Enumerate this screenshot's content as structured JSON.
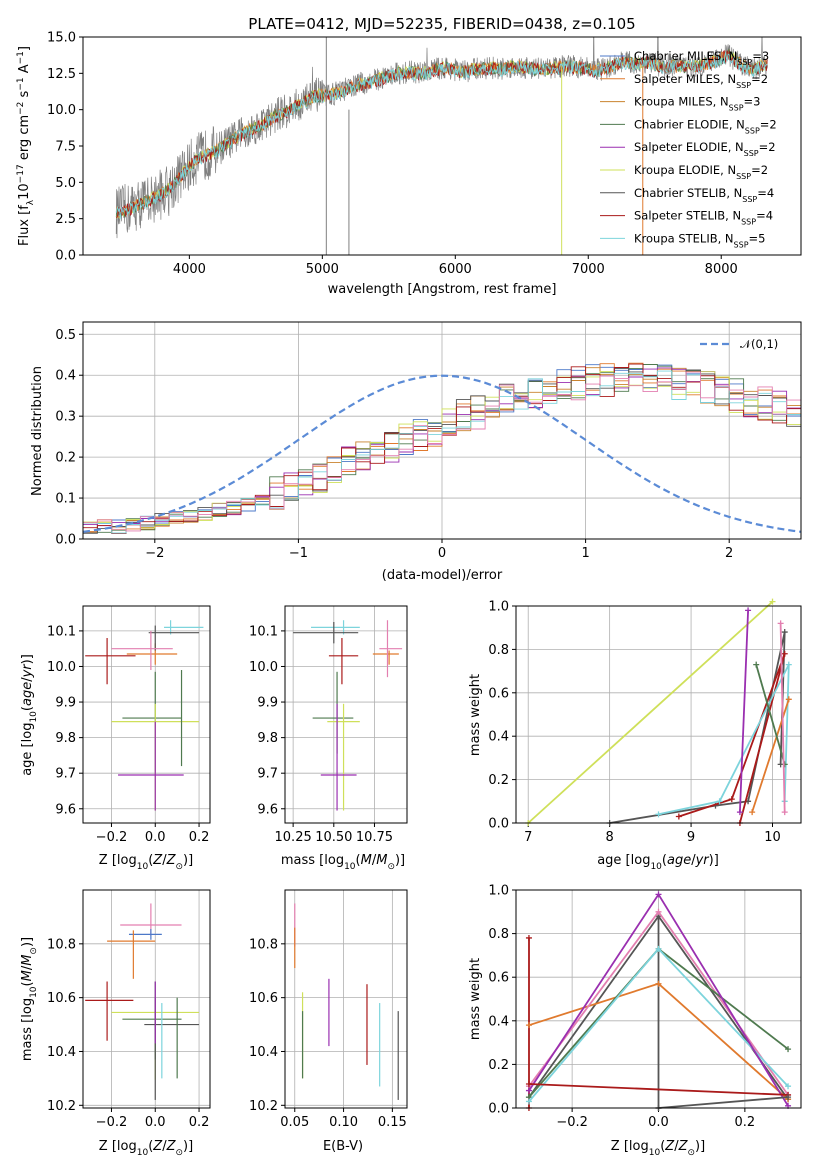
{
  "colors": {
    "chabrier_miles": "#4c78c8",
    "salpeter_miles": "#e07a2e",
    "kroupa_miles": "#c9822e",
    "chabrier_elodie": "#4f7a4f",
    "salpeter_elodie": "#9a2fb0",
    "kroupa_elodie": "#cfe05a",
    "chabrier_stelib": "#555555",
    "salpeter_stelib": "#aa1a1a",
    "kroupa_stelib": "#7dd4dc",
    "pink": "#e37fb0",
    "gauss": "#5b8bd6"
  },
  "legend_labels": [
    "Chabrier MILES, N",
    "Salpeter MILES, N",
    "Kroupa MILES, N",
    "Chabrier ELODIE, N",
    "Salpeter ELODIE, N",
    "Kroupa ELODIE, N",
    "Chabrier STELIB, N",
    "Salpeter STELIB, N",
    "Kroupa STELIB, N"
  ],
  "legend_sub": "SSP",
  "legend_counts": [
    "=3",
    "=2",
    "=3",
    "=2",
    "=2",
    "=2",
    "=4",
    "=4",
    "=5"
  ],
  "chart_data": [
    {
      "type": "line",
      "title": "PLATE=0412, MJD=52235, FIBERID=0438, z=0.105",
      "xlabel": "wavelength [Angstrom, rest frame]",
      "ylabel": "Flux [f_λ10^-17 erg cm^-2 s^-1 A^-1]",
      "xlim": [
        3200,
        8600
      ],
      "ylim": [
        0,
        15
      ],
      "xticks": [
        "4000",
        "5000",
        "6000",
        "7000",
        "8000"
      ],
      "yticks": [
        "0.0",
        "2.5",
        "5.0",
        "7.5",
        "10.0",
        "12.5",
        "15.0"
      ],
      "continuum": {
        "x": [
          3450,
          3550,
          3650,
          3750,
          3850,
          3950,
          4050,
          4150,
          4250,
          4350,
          4450,
          4550,
          4650,
          4750,
          4850,
          4950,
          5050,
          5150,
          5250,
          5350,
          5450,
          5550,
          5650,
          5750,
          5850,
          5950,
          6050,
          6150,
          6250,
          6350,
          6450,
          6550,
          6650,
          6750,
          6850,
          6950,
          7050,
          7150,
          7250,
          7350,
          7450,
          7550,
          7650,
          7750,
          7850,
          7950,
          8050,
          8150,
          8250,
          8350
        ],
        "y": [
          2.9,
          3.2,
          3.6,
          4.0,
          4.6,
          5.6,
          6.6,
          7.0,
          7.5,
          8.1,
          8.6,
          9.0,
          9.6,
          10.0,
          10.5,
          11.0,
          11.0,
          11.3,
          11.7,
          11.9,
          12.2,
          12.5,
          12.6,
          12.5,
          12.8,
          12.9,
          12.6,
          12.8,
          12.9,
          12.8,
          13.0,
          12.9,
          12.8,
          12.9,
          13.0,
          12.9,
          12.7,
          12.9,
          13.3,
          13.2,
          13.3,
          13.0,
          13.0,
          13.0,
          13.1,
          13.3,
          13.8,
          13.1,
          12.8,
          13.2
        ]
      },
      "legend": "top-right"
    },
    {
      "type": "histogram",
      "xlabel": "(data-model)/error",
      "ylabel": "Normed distribution",
      "xlim": [
        -2.5,
        2.5
      ],
      "ylim": [
        0,
        0.53
      ],
      "xticks": [
        "−2",
        "−1",
        "0",
        "1",
        "2"
      ],
      "yticks": [
        "0.0",
        "0.1",
        "0.2",
        "0.3",
        "0.4",
        "0.5"
      ],
      "reference_label": "𝒩(0,1)",
      "bin_width": 0.1,
      "bin_start": -2.5,
      "series_base": [
        0.03,
        0.03,
        0.03,
        0.035,
        0.04,
        0.045,
        0.05,
        0.055,
        0.06,
        0.07,
        0.075,
        0.085,
        0.1,
        0.11,
        0.12,
        0.13,
        0.15,
        0.17,
        0.19,
        0.2,
        0.21,
        0.22,
        0.24,
        0.25,
        0.26,
        0.28,
        0.3,
        0.31,
        0.32,
        0.34,
        0.35,
        0.36,
        0.37,
        0.38,
        0.38,
        0.39,
        0.39,
        0.4,
        0.39,
        0.39,
        0.4,
        0.38,
        0.38,
        0.37,
        0.36,
        0.35,
        0.34,
        0.33,
        0.32,
        0.3,
        0.29,
        0.27,
        0.26,
        0.24,
        0.23,
        0.21,
        0.2,
        0.18,
        0.17,
        0.15,
        0.14,
        0.12,
        0.11,
        0.1,
        0.09,
        0.08,
        0.07,
        0.06,
        0.05,
        0.045,
        0.04,
        0.035,
        0.03,
        0.03,
        0.025,
        0.025,
        0.02,
        0.02,
        0.02,
        0.02
      ]
    },
    {
      "type": "scatter",
      "xlabel": "Z [log10(Z/Z⊙)]",
      "ylabel": "age  [log10(age/yr)]",
      "xlim": [
        -0.33,
        0.25
      ],
      "ylim": [
        9.56,
        10.17
      ],
      "xticks": [
        "−0.2",
        "0.0",
        "0.2"
      ],
      "yticks": [
        "9.6",
        "9.7",
        "9.8",
        "9.9",
        "10.0",
        "10.1"
      ]
    },
    {
      "type": "scatter",
      "xlabel": "mass [log10(M/M⊙)]",
      "xlim": [
        10.2,
        10.95
      ],
      "ylim": [
        9.56,
        10.17
      ],
      "xticks": [
        "10.25",
        "10.50",
        "10.75"
      ],
      "yticks": [
        "9.6",
        "9.7",
        "9.8",
        "9.9",
        "10.0",
        "10.1"
      ]
    },
    {
      "type": "line",
      "xlabel": "age  [log10(age/yr)]",
      "ylabel": "mass weight",
      "xlim": [
        6.85,
        10.35
      ],
      "ylim": [
        0,
        1
      ],
      "xticks": [
        "7",
        "8",
        "9",
        "10"
      ],
      "yticks": [
        "0.0",
        "0.2",
        "0.4",
        "0.6",
        "0.8",
        "1.0"
      ]
    },
    {
      "type": "scatter",
      "xlabel": "Z [log10(Z/Z⊙)]",
      "ylabel": "mass [log10(M/M⊙)]",
      "xlim": [
        -0.33,
        0.25
      ],
      "ylim": [
        10.19,
        11.0
      ],
      "xticks": [
        "−0.2",
        "0.0",
        "0.2"
      ],
      "yticks": [
        "10.2",
        "10.4",
        "10.6",
        "10.8"
      ]
    },
    {
      "type": "scatter",
      "xlabel": "E(B-V)",
      "xlim": [
        0.04,
        0.165
      ],
      "ylim": [
        10.19,
        11.0
      ],
      "xticks": [
        "0.05",
        "0.10",
        "0.15"
      ],
      "yticks": [
        "10.2",
        "10.4",
        "10.6",
        "10.8"
      ]
    },
    {
      "type": "line",
      "xlabel": "Z [log10(Z/Z⊙)]",
      "ylabel": "mass weight",
      "xlim": [
        -0.33,
        0.33
      ],
      "ylim": [
        0,
        1
      ],
      "xticks": [
        "−0.2",
        "0.0",
        "0.2"
      ],
      "yticks": [
        "0.0",
        "0.2",
        "0.4",
        "0.6",
        "0.8",
        "1.0"
      ]
    }
  ]
}
